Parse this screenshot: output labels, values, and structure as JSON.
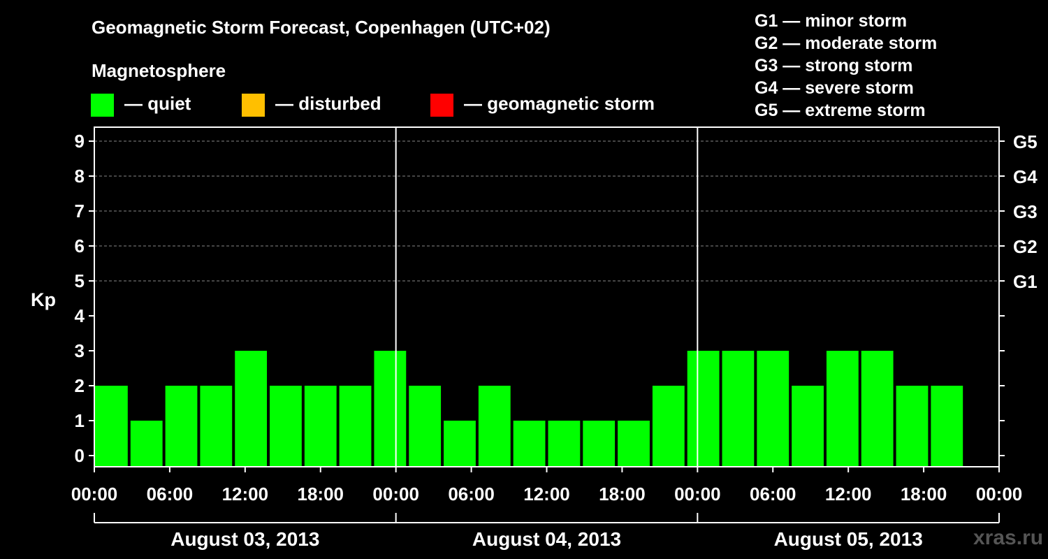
{
  "title": "Geomagnetic Storm Forecast, Copenhagen (UTC+02)",
  "legend": {
    "heading": "Magnetosphere",
    "items": [
      {
        "label": "— quiet",
        "color": "#00ff00"
      },
      {
        "label": "— disturbed",
        "color": "#ffbf00"
      },
      {
        "label": "— geomagnetic storm",
        "color": "#ff0000"
      }
    ]
  },
  "storm_levels": [
    "G1 — minor storm",
    "G2 — moderate storm",
    "G3 — strong storm",
    "G4 — severe storm",
    "G5 — extreme storm"
  ],
  "watermark": "xras.ru",
  "chart_data": {
    "type": "bar",
    "ylabel": "Kp",
    "ylim": [
      0,
      9
    ],
    "yticks": [
      "0",
      "1",
      "2",
      "3",
      "4",
      "5",
      "6",
      "7",
      "8",
      "9"
    ],
    "right_ticks": [
      "G1",
      "G2",
      "G3",
      "G4",
      "G5"
    ],
    "xtick_labels": [
      "00:00",
      "06:00",
      "12:00",
      "18:00",
      "00:00",
      "06:00",
      "12:00",
      "18:00",
      "00:00",
      "06:00",
      "12:00",
      "18:00",
      "00:00"
    ],
    "days": [
      "August 03, 2013",
      "August 04, 2013",
      "August 05, 2013"
    ],
    "bar_color": "#00ff00",
    "grid": true,
    "values": [
      2,
      1,
      2,
      2,
      3,
      2,
      2,
      2,
      3,
      2,
      1,
      2,
      1,
      1,
      1,
      1,
      2,
      3,
      3,
      3,
      2,
      3,
      3,
      2,
      2
    ]
  }
}
